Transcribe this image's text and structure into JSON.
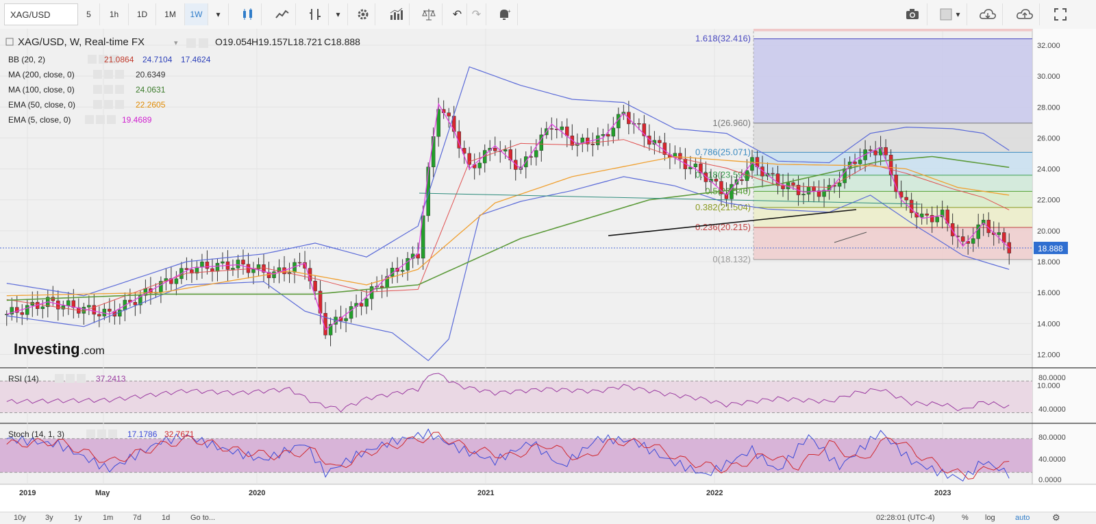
{
  "toolbar": {
    "symbol": "XAG/USD",
    "intervals": [
      "5",
      "1h",
      "1D",
      "1M",
      "1W"
    ],
    "active_interval": "1W",
    "icons": [
      "candles-icon",
      "area-chart-icon",
      "indicator-icon",
      "dropdown-icon",
      "gear-icon",
      "bar-compare-icon",
      "scale-icon",
      "undo-icon",
      "redo-icon",
      "alert-icon",
      "camera-icon",
      "color-square-icon",
      "cloud-download-icon",
      "cloud-upload-icon",
      "fullscreen-icon"
    ]
  },
  "legend": {
    "title": "XAG/USD, W, Real-time FX",
    "o": "O19.054",
    "h": "H19.157",
    "l": "L18.721",
    "c": "C18.888",
    "indicators": [
      {
        "label": "BB (20, 2)",
        "values": [
          "21.0864",
          "24.7104",
          "17.4624"
        ],
        "colors": [
          "#c0392b",
          "#2b3fb8",
          "#2b3fb8"
        ]
      },
      {
        "label": "MA (200, close, 0)",
        "values": [
          "20.6349"
        ],
        "colors": [
          "#333333"
        ]
      },
      {
        "label": "MA (100, close, 0)",
        "values": [
          "24.0631"
        ],
        "colors": [
          "#3a7a2a"
        ]
      },
      {
        "label": "EMA (50, close, 0)",
        "values": [
          "22.2605"
        ],
        "colors": [
          "#e08a00"
        ]
      },
      {
        "label": "EMA (5, close, 0)",
        "values": [
          "19.4689"
        ],
        "colors": [
          "#d020d0"
        ]
      }
    ]
  },
  "watermark": {
    "brand": "Investing",
    "suffix": ".com"
  },
  "rsi": {
    "label": "RSI (14)",
    "value": "37.2413",
    "ticks": [
      "80.0000",
      "40.0000"
    ]
  },
  "stoch": {
    "label": "Stoch (14, 1, 3)",
    "k": "17.1786",
    "d": "32.7671",
    "ticks": [
      "80.0000",
      "40.0000",
      "0.0000"
    ]
  },
  "colors": {
    "bull": "#22a02a",
    "bear": "#d9262f",
    "bb": "#5a6ad8",
    "ma200": "#555555",
    "ma100": "#5c9a3a",
    "ema50": "#f0a030",
    "ema5": "#e040e0",
    "rsi": "#9a3aa0",
    "stochK": "#3a4ad8",
    "stochD": "#d0282e"
  },
  "bottombar": {
    "ranges": [
      "10y",
      "3y",
      "1y",
      "1m",
      "7d",
      "1d",
      "Go to..."
    ],
    "time": "02:28:01 (UTC-4)",
    "options": [
      "%",
      "log",
      "auto"
    ]
  },
  "chart_data": [
    {
      "type": "candlestick",
      "title": "XAG/USD, W, Real-time FX",
      "y_ticks": [
        "32.000",
        "30.000",
        "28.000",
        "26.000",
        "24.000",
        "22.000",
        "20.000",
        "18.000",
        "16.000",
        "14.000",
        "12.000",
        "10.000"
      ],
      "ylim": [
        10,
        33
      ],
      "x_ticks": [
        "2019",
        "May",
        "2020",
        "2021",
        "2022",
        "2023"
      ],
      "current_price": "18.888",
      "fibonacci": [
        {
          "label": "1.618(32.416)",
          "value": 32.416
        },
        {
          "label": "1(26.960)",
          "value": 26.96
        },
        {
          "label": "0.786(25.071)",
          "value": 25.071
        },
        {
          "label": "0.618(23.596)",
          "value": 23.596
        },
        {
          "label": "0.5(22.546)",
          "value": 22.546
        },
        {
          "label": "0.382(21.504)",
          "value": 21.504
        },
        {
          "label": "0.236(20.215)",
          "value": 20.215
        },
        {
          "label": "0(18.132)",
          "value": 18.132
        }
      ],
      "series_anchor_points": {
        "close": [
          [
            0,
            14.6
          ],
          [
            8,
            15.4
          ],
          [
            20,
            14.6
          ],
          [
            30,
            16.5
          ],
          [
            36,
            17.6
          ],
          [
            45,
            17.8
          ],
          [
            52,
            17.2
          ],
          [
            58,
            17.9
          ],
          [
            62,
            13.6
          ],
          [
            68,
            15.1
          ],
          [
            74,
            17.0
          ],
          [
            80,
            18.5
          ],
          [
            82,
            23.8
          ],
          [
            84,
            28.2
          ],
          [
            87,
            26.5
          ],
          [
            90,
            24.0
          ],
          [
            95,
            25.5
          ],
          [
            100,
            24.0
          ],
          [
            106,
            26.9
          ],
          [
            111,
            25.6
          ],
          [
            116,
            26.0
          ],
          [
            120,
            27.6
          ],
          [
            125,
            25.9
          ],
          [
            130,
            24.7
          ],
          [
            135,
            23.8
          ],
          [
            140,
            22.3
          ],
          [
            145,
            24.4
          ],
          [
            150,
            23.1
          ],
          [
            155,
            22.5
          ],
          [
            160,
            22.6
          ],
          [
            165,
            24.6
          ],
          [
            170,
            25.4
          ],
          [
            174,
            22.0
          ],
          [
            178,
            20.8
          ],
          [
            182,
            21.0
          ],
          [
            186,
            19.0
          ],
          [
            190,
            20.5
          ],
          [
            195,
            18.9
          ]
        ],
        "bb_upper": [
          [
            0,
            16.6
          ],
          [
            15,
            15.8
          ],
          [
            35,
            18.0
          ],
          [
            50,
            18.5
          ],
          [
            60,
            19.2
          ],
          [
            70,
            18.3
          ],
          [
            80,
            20.3
          ],
          [
            90,
            30.6
          ],
          [
            100,
            29.4
          ],
          [
            110,
            28.5
          ],
          [
            120,
            28.3
          ],
          [
            130,
            26.6
          ],
          [
            140,
            26.3
          ],
          [
            150,
            24.5
          ],
          [
            160,
            24.4
          ],
          [
            168,
            26.3
          ],
          [
            175,
            26.7
          ],
          [
            184,
            26.6
          ],
          [
            190,
            26.3
          ],
          [
            195,
            25.2
          ]
        ],
        "bb_lower": [
          [
            0,
            14.5
          ],
          [
            15,
            13.8
          ],
          [
            35,
            16.5
          ],
          [
            50,
            16.7
          ],
          [
            58,
            14.8
          ],
          [
            64,
            14.2
          ],
          [
            75,
            13.4
          ],
          [
            82,
            11.6
          ],
          [
            86,
            13.0
          ],
          [
            92,
            21.0
          ],
          [
            100,
            21.9
          ],
          [
            110,
            22.6
          ],
          [
            120,
            23.5
          ],
          [
            130,
            22.9
          ],
          [
            140,
            21.8
          ],
          [
            148,
            21.4
          ],
          [
            160,
            21.2
          ],
          [
            168,
            22.3
          ],
          [
            176,
            20.5
          ],
          [
            186,
            18.4
          ],
          [
            195,
            17.5
          ]
        ],
        "ma100": [
          [
            0,
            15.5
          ],
          [
            30,
            15.9
          ],
          [
            60,
            15.9
          ],
          [
            80,
            16.5
          ],
          [
            100,
            19.5
          ],
          [
            125,
            22.0
          ],
          [
            150,
            23.0
          ],
          [
            170,
            24.5
          ],
          [
            180,
            24.8
          ],
          [
            195,
            24.1
          ]
        ],
        "ema50": [
          [
            0,
            15.8
          ],
          [
            30,
            16.0
          ],
          [
            55,
            17.4
          ],
          [
            70,
            16.5
          ],
          [
            80,
            17.5
          ],
          [
            95,
            21.8
          ],
          [
            110,
            23.5
          ],
          [
            130,
            24.8
          ],
          [
            150,
            24.3
          ],
          [
            168,
            24.2
          ],
          [
            175,
            24.0
          ],
          [
            185,
            22.8
          ],
          [
            195,
            22.3
          ]
        ],
        "rsi": [
          [
            0,
            44
          ],
          [
            20,
            46
          ],
          [
            35,
            58
          ],
          [
            45,
            55
          ],
          [
            55,
            60
          ],
          [
            60,
            42
          ],
          [
            65,
            34
          ],
          [
            70,
            48
          ],
          [
            80,
            60
          ],
          [
            83,
            82
          ],
          [
            88,
            64
          ],
          [
            95,
            55
          ],
          [
            105,
            60
          ],
          [
            115,
            57
          ],
          [
            120,
            64
          ],
          [
            128,
            54
          ],
          [
            135,
            48
          ],
          [
            140,
            40
          ],
          [
            150,
            48
          ],
          [
            160,
            44
          ],
          [
            165,
            55
          ],
          [
            170,
            60
          ],
          [
            176,
            42
          ],
          [
            182,
            41
          ],
          [
            186,
            33
          ],
          [
            190,
            44
          ],
          [
            195,
            37
          ]
        ],
        "stoch_k": [
          [
            0,
            80
          ],
          [
            10,
            70
          ],
          [
            20,
            25
          ],
          [
            30,
            75
          ],
          [
            35,
            85
          ],
          [
            42,
            62
          ],
          [
            50,
            42
          ],
          [
            58,
            72
          ],
          [
            62,
            18
          ],
          [
            68,
            50
          ],
          [
            74,
            72
          ],
          [
            82,
            90
          ],
          [
            88,
            62
          ],
          [
            95,
            40
          ],
          [
            102,
            74
          ],
          [
            108,
            30
          ],
          [
            115,
            80
          ],
          [
            122,
            76
          ],
          [
            128,
            45
          ],
          [
            136,
            15
          ],
          [
            145,
            60
          ],
          [
            150,
            22
          ],
          [
            156,
            85
          ],
          [
            162,
            30
          ],
          [
            170,
            92
          ],
          [
            176,
            40
          ],
          [
            182,
            18
          ],
          [
            186,
            8
          ],
          [
            190,
            40
          ],
          [
            195,
            17
          ]
        ],
        "stoch_d": [
          [
            0,
            70
          ],
          [
            10,
            75
          ],
          [
            20,
            38
          ],
          [
            30,
            68
          ],
          [
            36,
            80
          ],
          [
            45,
            58
          ],
          [
            52,
            50
          ],
          [
            60,
            58
          ],
          [
            64,
            25
          ],
          [
            70,
            55
          ],
          [
            78,
            75
          ],
          [
            84,
            86
          ],
          [
            90,
            62
          ],
          [
            98,
            48
          ],
          [
            105,
            70
          ],
          [
            112,
            42
          ],
          [
            118,
            76
          ],
          [
            125,
            70
          ],
          [
            132,
            40
          ],
          [
            140,
            25
          ],
          [
            148,
            52
          ],
          [
            154,
            30
          ],
          [
            160,
            72
          ],
          [
            166,
            40
          ],
          [
            172,
            84
          ],
          [
            178,
            48
          ],
          [
            184,
            20
          ],
          [
            188,
            14
          ],
          [
            192,
            32
          ],
          [
            195,
            33
          ]
        ]
      }
    }
  ]
}
